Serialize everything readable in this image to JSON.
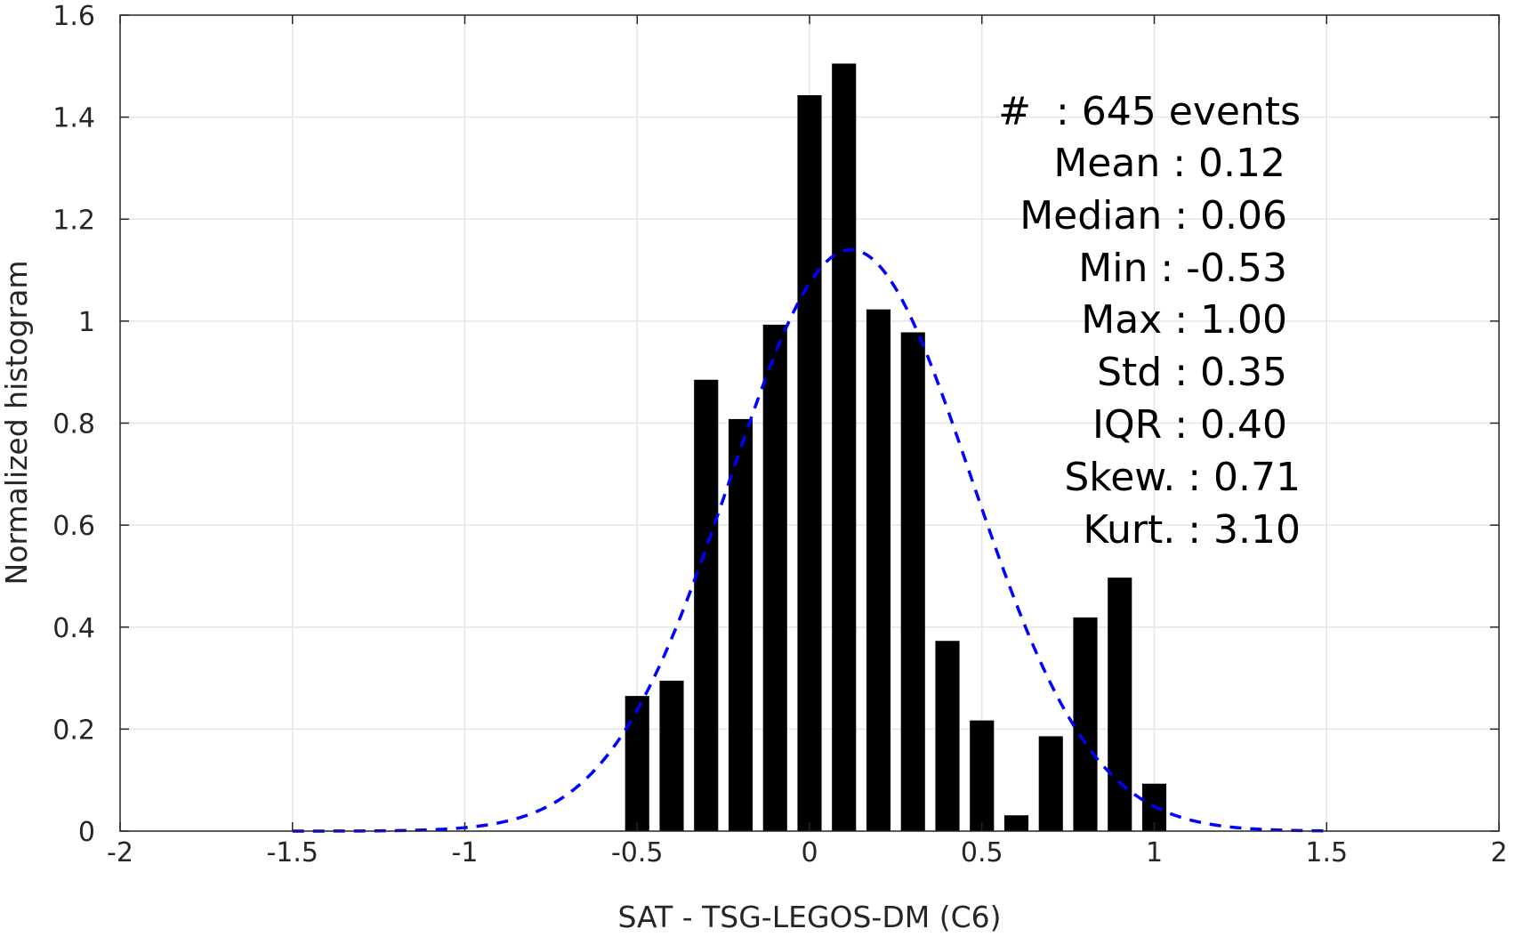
{
  "chart_data": {
    "type": "bar",
    "xlabel": "SAT - TSG-LEGOS-DM (C6)",
    "ylabel": "Normalized histogram",
    "xlim": [
      -2,
      2
    ],
    "ylim": [
      0,
      1.6
    ],
    "x_ticks": [
      "-2",
      "-1.5",
      "-1",
      "-0.5",
      "0",
      "0.5",
      "1",
      "1.5",
      "2"
    ],
    "y_ticks": [
      "0",
      "0.2",
      "0.4",
      "0.6",
      "0.8",
      "1",
      "1.2",
      "1.4",
      "1.6"
    ],
    "x_tick_values": [
      -2,
      -1.5,
      -1,
      -0.5,
      0,
      0.5,
      1,
      1.5,
      2
    ],
    "y_tick_values": [
      0,
      0.2,
      0.4,
      0.6,
      0.8,
      1.0,
      1.2,
      1.4,
      1.6
    ],
    "grid": true,
    "bin_width": 0.1,
    "bar_color": "#000000",
    "curve_color": "#0000ff",
    "bars": [
      {
        "x": -0.5,
        "y": 0.265
      },
      {
        "x": -0.4,
        "y": 0.295
      },
      {
        "x": -0.3,
        "y": 0.885
      },
      {
        "x": -0.2,
        "y": 0.808
      },
      {
        "x": -0.1,
        "y": 0.993
      },
      {
        "x": 0.0,
        "y": 1.443
      },
      {
        "x": 0.1,
        "y": 1.505
      },
      {
        "x": 0.2,
        "y": 1.023
      },
      {
        "x": 0.3,
        "y": 0.978
      },
      {
        "x": 0.4,
        "y": 0.373
      },
      {
        "x": 0.5,
        "y": 0.217
      },
      {
        "x": 0.6,
        "y": 0.031
      },
      {
        "x": 0.7,
        "y": 0.186
      },
      {
        "x": 0.8,
        "y": 0.419
      },
      {
        "x": 0.9,
        "y": 0.497
      },
      {
        "x": 1.0,
        "y": 0.093
      }
    ],
    "normal_fit": {
      "mean": 0.12,
      "std": 0.35,
      "x_range": [
        -1.5,
        1.5
      ],
      "style": "dashed"
    },
    "annotations": {
      "events": "#  : 645 events",
      "mean": "Mean : 0.12",
      "median": "Median : 0.06",
      "min": "Min : -0.53",
      "max": "Max : 1.00",
      "std": "Std : 0.35",
      "iqr": "IQR : 0.40",
      "skew": "Skew. : 0.71",
      "kurt": "Kurt. : 3.10"
    }
  }
}
